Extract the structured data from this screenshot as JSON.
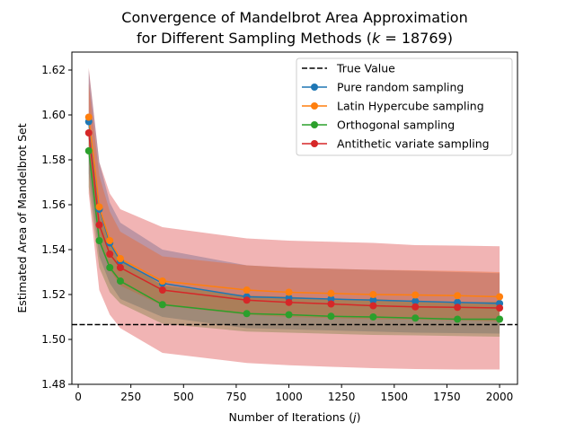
{
  "chart_data": {
    "type": "line",
    "title_line1": "Convergence of Mandelbrot Area Approximation",
    "title_line2_prefix": "for Different Sampling Methods (",
    "title_k_symbol": "k",
    "title_k_value": " = 18769)",
    "xlabel_prefix": "Number of Iterations (",
    "xlabel_symbol": "j",
    "xlabel_suffix": ")",
    "ylabel": "Estimated Area of Mandelbrot Set",
    "xlim": [
      -30,
      2085
    ],
    "ylim": [
      1.48,
      1.628
    ],
    "xticks": [
      0,
      250,
      500,
      750,
      1000,
      1250,
      1500,
      1750,
      2000
    ],
    "yticks": [
      1.48,
      1.5,
      1.52,
      1.54,
      1.56,
      1.58,
      1.6,
      1.62
    ],
    "ytick_labels": [
      "1.48",
      "1.50",
      "1.52",
      "1.54",
      "1.56",
      "1.58",
      "1.60",
      "1.62"
    ],
    "x": [
      50,
      100,
      150,
      200,
      400,
      800,
      1000,
      1200,
      1400,
      1600,
      1800,
      2000
    ],
    "true_value": 1.5066,
    "true_value_label": "True Value",
    "legend_position": "top-right",
    "series": [
      {
        "name": "Pure random sampling",
        "color": "#1f77b4",
        "values": [
          1.597,
          1.558,
          1.543,
          1.535,
          1.525,
          1.519,
          1.5185,
          1.518,
          1.5175,
          1.517,
          1.5165,
          1.516
        ],
        "lower": [
          1.574,
          1.537,
          1.525,
          1.518,
          1.51,
          1.505,
          1.5045,
          1.504,
          1.5035,
          1.503,
          1.5028,
          1.5026
        ],
        "upper": [
          1.62,
          1.579,
          1.561,
          1.552,
          1.54,
          1.533,
          1.532,
          1.5315,
          1.531,
          1.5305,
          1.53,
          1.5295
        ]
      },
      {
        "name": "Latin Hypercube sampling",
        "color": "#ff7f0e",
        "values": [
          1.599,
          1.559,
          1.544,
          1.536,
          1.526,
          1.522,
          1.521,
          1.5205,
          1.52,
          1.5198,
          1.5195,
          1.519
        ],
        "lower": [
          1.584,
          1.545,
          1.531,
          1.524,
          1.515,
          1.511,
          1.51,
          1.5095,
          1.509,
          1.5088,
          1.5085,
          1.508
        ],
        "upper": [
          1.614,
          1.573,
          1.557,
          1.548,
          1.537,
          1.533,
          1.532,
          1.5315,
          1.531,
          1.5308,
          1.5305,
          1.53
        ]
      },
      {
        "name": "Orthogonal sampling",
        "color": "#2ca02c",
        "values": [
          1.584,
          1.544,
          1.532,
          1.526,
          1.5155,
          1.5115,
          1.511,
          1.5103,
          1.51,
          1.5095,
          1.509,
          1.509
        ],
        "lower": [
          1.568,
          1.532,
          1.521,
          1.516,
          1.507,
          1.5035,
          1.503,
          1.5025,
          1.502,
          1.5018,
          1.5015,
          1.5012
        ],
        "upper": [
          1.6,
          1.556,
          1.543,
          1.536,
          1.524,
          1.5195,
          1.519,
          1.518,
          1.518,
          1.5172,
          1.5165,
          1.5168
        ]
      },
      {
        "name": "Antithetic variate sampling",
        "color": "#d62728",
        "values": [
          1.592,
          1.551,
          1.538,
          1.532,
          1.522,
          1.5175,
          1.5165,
          1.5158,
          1.515,
          1.5145,
          1.5143,
          1.514
        ],
        "lower": [
          1.565,
          1.522,
          1.511,
          1.505,
          1.494,
          1.4895,
          1.4885,
          1.4878,
          1.4872,
          1.4868,
          1.4866,
          1.4866
        ],
        "upper": [
          1.621,
          1.579,
          1.565,
          1.558,
          1.55,
          1.545,
          1.544,
          1.5435,
          1.543,
          1.542,
          1.5418,
          1.5415
        ]
      }
    ]
  }
}
